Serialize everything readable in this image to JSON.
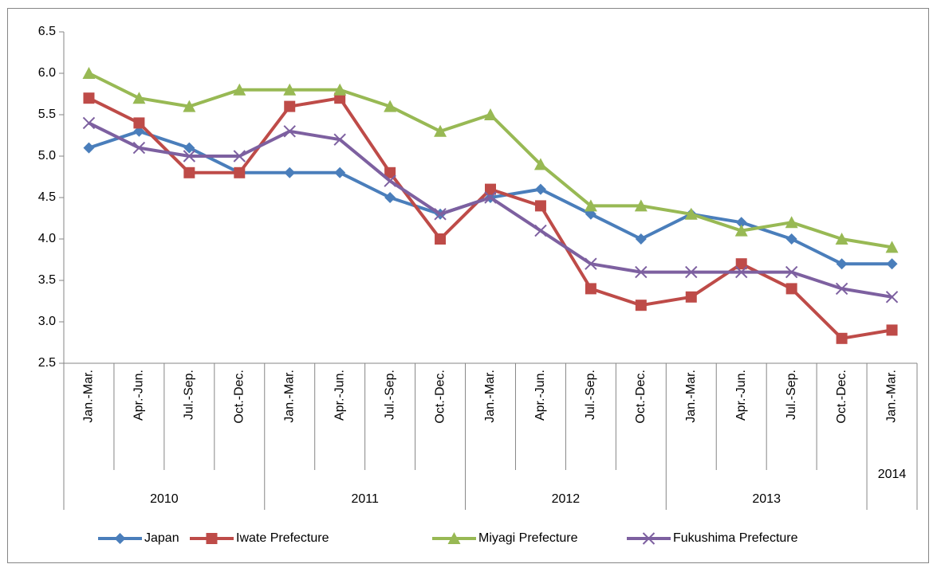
{
  "chart_data": {
    "type": "line",
    "categories": [
      "Jan.-Mar.",
      "Apr.-Jun.",
      "Jul.-Sep.",
      "Oct.-Dec.",
      "Jan.-Mar.",
      "Apr.-Jun.",
      "Jul.-Sep.",
      "Oct.-Dec.",
      "Jan.-Mar.",
      "Apr.-Jun.",
      "Jul.-Sep.",
      "Oct.-Dec.",
      "Jan.-Mar.",
      "Apr.-Jun.",
      "Jul.-Sep.",
      "Oct.-Dec.",
      "Jan.-Mar."
    ],
    "years": [
      "2010",
      "2010",
      "2010",
      "2010",
      "2011",
      "2011",
      "2011",
      "2011",
      "2012",
      "2012",
      "2012",
      "2012",
      "2013",
      "2013",
      "2013",
      "2013",
      "2014"
    ],
    "series": [
      {
        "name": "Japan",
        "color": "#4a7ebb",
        "marker": "diamond",
        "values": [
          5.1,
          5.3,
          5.1,
          4.8,
          4.8,
          4.8,
          4.5,
          4.3,
          4.5,
          4.6,
          4.3,
          4.0,
          4.3,
          4.2,
          4.0,
          3.7,
          3.7
        ]
      },
      {
        "name": "Iwate Prefecture",
        "color": "#be4b48",
        "marker": "square",
        "values": [
          5.7,
          5.4,
          4.8,
          4.8,
          5.6,
          5.7,
          4.8,
          4.0,
          4.6,
          4.4,
          3.4,
          3.2,
          3.3,
          3.7,
          3.4,
          2.8,
          2.9
        ]
      },
      {
        "name": "Miyagi Prefecture",
        "color": "#98b954",
        "marker": "triangle",
        "values": [
          6.0,
          5.7,
          5.6,
          5.8,
          5.8,
          5.8,
          5.6,
          5.3,
          5.5,
          4.9,
          4.4,
          4.4,
          4.3,
          4.1,
          4.2,
          4.0,
          3.9
        ]
      },
      {
        "name": "Fukushima Prefecture",
        "color": "#7d60a0",
        "marker": "x",
        "values": [
          5.4,
          5.1,
          5.0,
          5.0,
          5.3,
          5.2,
          4.7,
          4.3,
          4.5,
          4.1,
          3.7,
          3.6,
          3.6,
          3.6,
          3.6,
          3.4,
          3.3
        ]
      }
    ],
    "ylim": [
      2.5,
      6.5
    ],
    "yticks": [
      2.5,
      {
        "value": 3,
        "label": "3.0"
      },
      3.5,
      {
        "value": 4,
        "label": "4.0"
      },
      4.5,
      {
        "value": 5,
        "label": "5.0"
      },
      5.5,
      {
        "value": 6,
        "label": "6.0"
      },
      6.5
    ],
    "grid": false,
    "legend": "bottom"
  }
}
